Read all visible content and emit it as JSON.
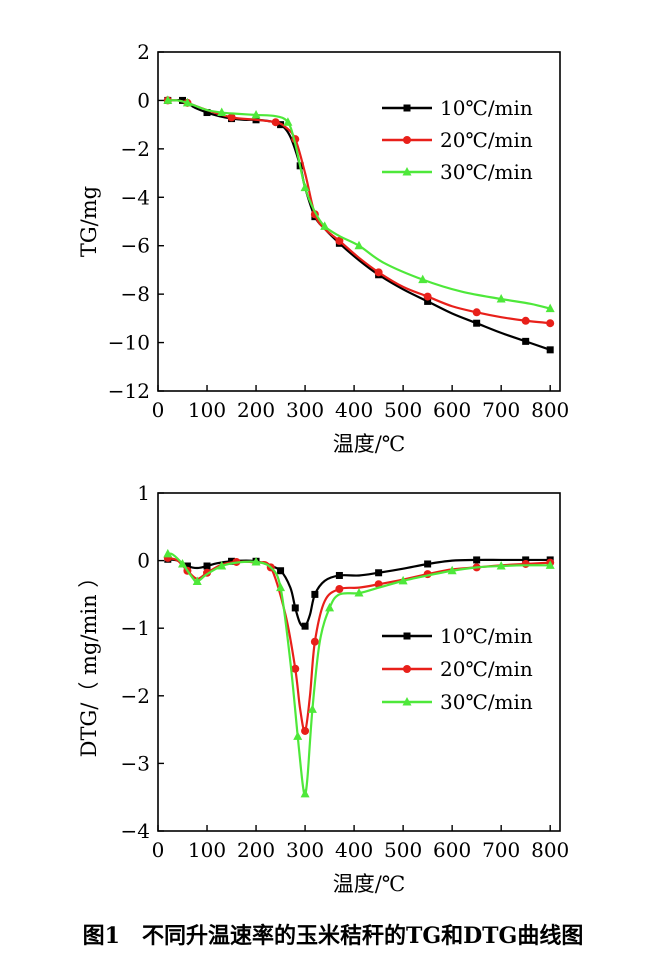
{
  "caption": "图1　不同升温速率的玉米秸秆的TG和DTG曲线图",
  "colors": {
    "10": "#000000",
    "20": "#e8201a",
    "30": "#4ee83a"
  },
  "chart_data": [
    {
      "type": "line",
      "title": "",
      "xlabel": "温度/℃",
      "ylabel": "TG/mg",
      "xlim": [
        0,
        820
      ],
      "ylim": [
        -12,
        2
      ],
      "xticks": [
        0,
        100,
        200,
        300,
        400,
        500,
        600,
        700,
        800
      ],
      "yticks": [
        2,
        0,
        -2,
        -4,
        -6,
        -8,
        -10,
        -12
      ],
      "legend": "top-right",
      "series": [
        {
          "name": "10℃/min",
          "color": "#000000",
          "marker": "square",
          "x": [
            20,
            35,
            50,
            75,
            100,
            125,
            150,
            175,
            200,
            225,
            250,
            270,
            290,
            300,
            320,
            340,
            370,
            410,
            450,
            500,
            550,
            600,
            650,
            700,
            750,
            800
          ],
          "y": [
            0,
            0,
            0,
            -0.3,
            -0.5,
            -0.65,
            -0.75,
            -0.8,
            -0.8,
            -0.85,
            -1.0,
            -1.5,
            -2.7,
            -3.6,
            -4.8,
            -5.3,
            -5.9,
            -6.6,
            -7.2,
            -7.8,
            -8.3,
            -8.8,
            -9.2,
            -9.6,
            -9.95,
            -10.3
          ]
        },
        {
          "name": "20℃/min",
          "color": "#e8201a",
          "marker": "circle",
          "x": [
            20,
            40,
            60,
            100,
            150,
            200,
            240,
            260,
            280,
            300,
            320,
            340,
            370,
            410,
            450,
            500,
            550,
            600,
            650,
            700,
            750,
            800
          ],
          "y": [
            0,
            0,
            -0.1,
            -0.4,
            -0.7,
            -0.8,
            -0.9,
            -1.1,
            -1.6,
            -3.0,
            -4.7,
            -5.3,
            -5.8,
            -6.5,
            -7.1,
            -7.7,
            -8.1,
            -8.5,
            -8.75,
            -8.95,
            -9.1,
            -9.2
          ]
        },
        {
          "name": "30℃/min",
          "color": "#4ee83a",
          "marker": "triangle",
          "x": [
            20,
            40,
            60,
            100,
            130,
            160,
            200,
            240,
            265,
            280,
            300,
            320,
            340,
            370,
            410,
            460,
            540,
            620,
            700,
            760,
            800
          ],
          "y": [
            0,
            0,
            -0.1,
            -0.4,
            -0.5,
            -0.55,
            -0.6,
            -0.65,
            -0.9,
            -1.8,
            -3.6,
            -4.6,
            -5.2,
            -5.6,
            -6.0,
            -6.7,
            -7.4,
            -7.9,
            -8.2,
            -8.4,
            -8.6
          ]
        }
      ]
    },
    {
      "type": "line",
      "title": "",
      "xlabel": "温度/℃",
      "ylabel": "DTG/（ mg/min ）",
      "xlim": [
        0,
        820
      ],
      "ylim": [
        -4,
        1
      ],
      "xticks": [
        0,
        100,
        200,
        300,
        400,
        500,
        600,
        700,
        800
      ],
      "yticks": [
        1,
        0,
        -1,
        -2,
        -3,
        -4
      ],
      "legend": "right",
      "series": [
        {
          "name": "10℃/min",
          "color": "#000000",
          "marker": "square",
          "x": [
            20,
            40,
            60,
            80,
            100,
            120,
            150,
            180,
            200,
            220,
            250,
            270,
            280,
            290,
            300,
            310,
            320,
            340,
            370,
            410,
            450,
            500,
            550,
            600,
            650,
            700,
            750,
            800
          ],
          "y": [
            0.02,
            0,
            -0.08,
            -0.11,
            -0.08,
            -0.04,
            -0.01,
            0,
            -0.01,
            -0.05,
            -0.15,
            -0.4,
            -0.7,
            -0.93,
            -0.97,
            -0.8,
            -0.5,
            -0.3,
            -0.22,
            -0.22,
            -0.18,
            -0.12,
            -0.05,
            0,
            0.01,
            0.01,
            0.01,
            0.01
          ]
        },
        {
          "name": "20℃/min",
          "color": "#e8201a",
          "marker": "circle",
          "x": [
            20,
            40,
            60,
            80,
            100,
            130,
            160,
            200,
            230,
            260,
            280,
            290,
            300,
            310,
            320,
            340,
            370,
            410,
            450,
            500,
            550,
            600,
            650,
            700,
            750,
            800
          ],
          "y": [
            0.04,
            0,
            -0.15,
            -0.27,
            -0.18,
            -0.06,
            -0.02,
            -0.03,
            -0.1,
            -0.8,
            -1.6,
            -2.2,
            -2.52,
            -2.0,
            -1.2,
            -0.6,
            -0.42,
            -0.4,
            -0.35,
            -0.28,
            -0.2,
            -0.13,
            -0.1,
            -0.07,
            -0.05,
            -0.03
          ]
        },
        {
          "name": "30℃/min",
          "color": "#4ee83a",
          "marker": "triangle",
          "x": [
            20,
            30,
            50,
            70,
            80,
            100,
            130,
            160,
            200,
            230,
            250,
            270,
            285,
            295,
            300,
            305,
            315,
            330,
            350,
            370,
            410,
            450,
            500,
            550,
            600,
            650,
            700,
            750,
            800
          ],
          "y": [
            0.1,
            0.09,
            -0.05,
            -0.25,
            -0.31,
            -0.2,
            -0.08,
            -0.03,
            -0.02,
            -0.1,
            -0.4,
            -1.5,
            -2.6,
            -3.3,
            -3.45,
            -3.2,
            -2.2,
            -1.2,
            -0.7,
            -0.5,
            -0.48,
            -0.4,
            -0.3,
            -0.22,
            -0.15,
            -0.1,
            -0.08,
            -0.07,
            -0.07
          ]
        }
      ]
    }
  ]
}
